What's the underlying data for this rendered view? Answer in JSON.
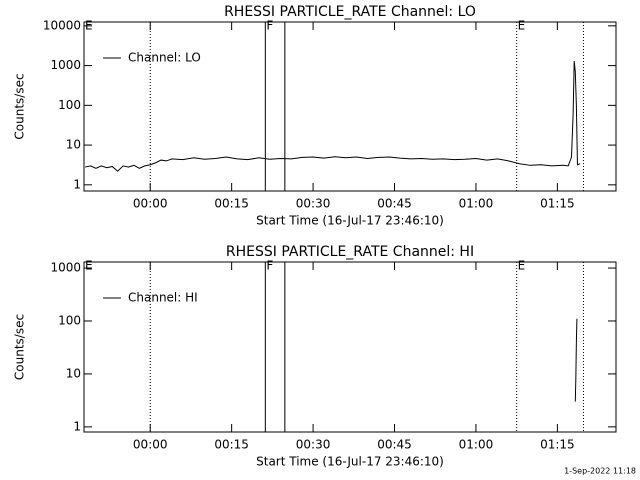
{
  "chart_data": [
    {
      "type": "line",
      "title": "RHESSI PARTICLE_RATE Channel: LO",
      "xlabel": "Start Time (16-Jul-17 23:46:10)",
      "ylabel": "Counts/sec",
      "log_y": true,
      "ylim": [
        0.7,
        12500
      ],
      "yticks": [
        1,
        10,
        100,
        1000,
        10000
      ],
      "xlim": [
        -12.2,
        85.8
      ],
      "xticks": [
        {
          "value": 0,
          "label": "00:00"
        },
        {
          "value": 15,
          "label": "00:15"
        },
        {
          "value": 30,
          "label": "00:30"
        },
        {
          "value": 45,
          "label": "00:45"
        },
        {
          "value": 60,
          "label": "01:00"
        },
        {
          "value": 75,
          "label": "01:15"
        }
      ],
      "vlines": [
        {
          "x": 0,
          "style": "dotted"
        },
        {
          "x": 21.2,
          "style": "solid"
        },
        {
          "x": 24.8,
          "style": "solid"
        },
        {
          "x": 67.5,
          "style": "dotted"
        },
        {
          "x": 79.8,
          "style": "dotted"
        }
      ],
      "flags": [
        {
          "x": -12.2,
          "label": "E"
        },
        {
          "x": 21.2,
          "label": "F"
        },
        {
          "x": 67.5,
          "label": "E"
        }
      ],
      "legend": "upper left",
      "series": [
        {
          "name": "Channel: LO",
          "color": "#000000",
          "x": [
            -12,
            -11,
            -10,
            -9,
            -8,
            -7,
            -6,
            -5,
            -4,
            -3,
            -2,
            -1,
            0,
            1,
            2,
            3,
            4,
            6,
            8,
            10,
            12,
            14,
            16,
            18,
            20,
            22,
            24,
            26,
            28,
            30,
            32,
            34,
            36,
            38,
            40,
            42,
            44,
            46,
            48,
            50,
            52,
            54,
            56,
            58,
            60,
            62,
            64,
            66,
            68,
            70,
            72,
            74,
            76,
            77,
            77.6,
            77.9,
            78.1,
            78.3,
            78.5,
            78.7,
            79.2
          ],
          "values": [
            2.8,
            3,
            2.6,
            3,
            2.7,
            2.9,
            2.2,
            3,
            2.8,
            3.1,
            2.6,
            3,
            3.2,
            3.6,
            4.2,
            4.0,
            4.5,
            4.3,
            4.8,
            4.4,
            4.6,
            5.0,
            4.5,
            4.3,
            4.8,
            4.4,
            4.6,
            4.5,
            4.9,
            5.0,
            4.7,
            5.1,
            4.8,
            5.0,
            4.6,
            4.9,
            5.0,
            4.7,
            4.5,
            4.6,
            4.4,
            4.5,
            4.3,
            4.4,
            4.6,
            4.2,
            4.5,
            4.0,
            3.4,
            3.1,
            3.2,
            3.0,
            3.1,
            3.0,
            5,
            60,
            1300,
            700,
            100,
            3.2,
            3.4
          ]
        }
      ]
    },
    {
      "type": "line",
      "title": "RHESSI PARTICLE_RATE Channel: HI",
      "xlabel": "Start Time (16-Jul-17 23:46:10)",
      "ylabel": "Counts/sec",
      "log_y": true,
      "ylim": [
        0.8,
        1300
      ],
      "yticks": [
        1,
        10,
        100,
        1000
      ],
      "xlim": [
        -12.2,
        85.8
      ],
      "xticks": [
        {
          "value": 0,
          "label": "00:00"
        },
        {
          "value": 15,
          "label": "00:15"
        },
        {
          "value": 30,
          "label": "00:30"
        },
        {
          "value": 45,
          "label": "00:45"
        },
        {
          "value": 60,
          "label": "01:00"
        },
        {
          "value": 75,
          "label": "01:15"
        }
      ],
      "vlines": [
        {
          "x": 0,
          "style": "dotted"
        },
        {
          "x": 21.2,
          "style": "solid"
        },
        {
          "x": 24.8,
          "style": "solid"
        },
        {
          "x": 67.5,
          "style": "dotted"
        },
        {
          "x": 79.8,
          "style": "dotted"
        }
      ],
      "flags": [
        {
          "x": -12.2,
          "label": "E"
        },
        {
          "x": 21.2,
          "label": "F"
        },
        {
          "x": 67.5,
          "label": "E"
        }
      ],
      "legend": "upper left",
      "series": [
        {
          "name": "Channel: HI",
          "color": "#000000",
          "x": [
            78.3,
            78.4,
            78.5,
            78.6
          ],
          "values": [
            3,
            8,
            40,
            110
          ]
        }
      ]
    }
  ],
  "footer": "1-Sep-2022 11:18"
}
